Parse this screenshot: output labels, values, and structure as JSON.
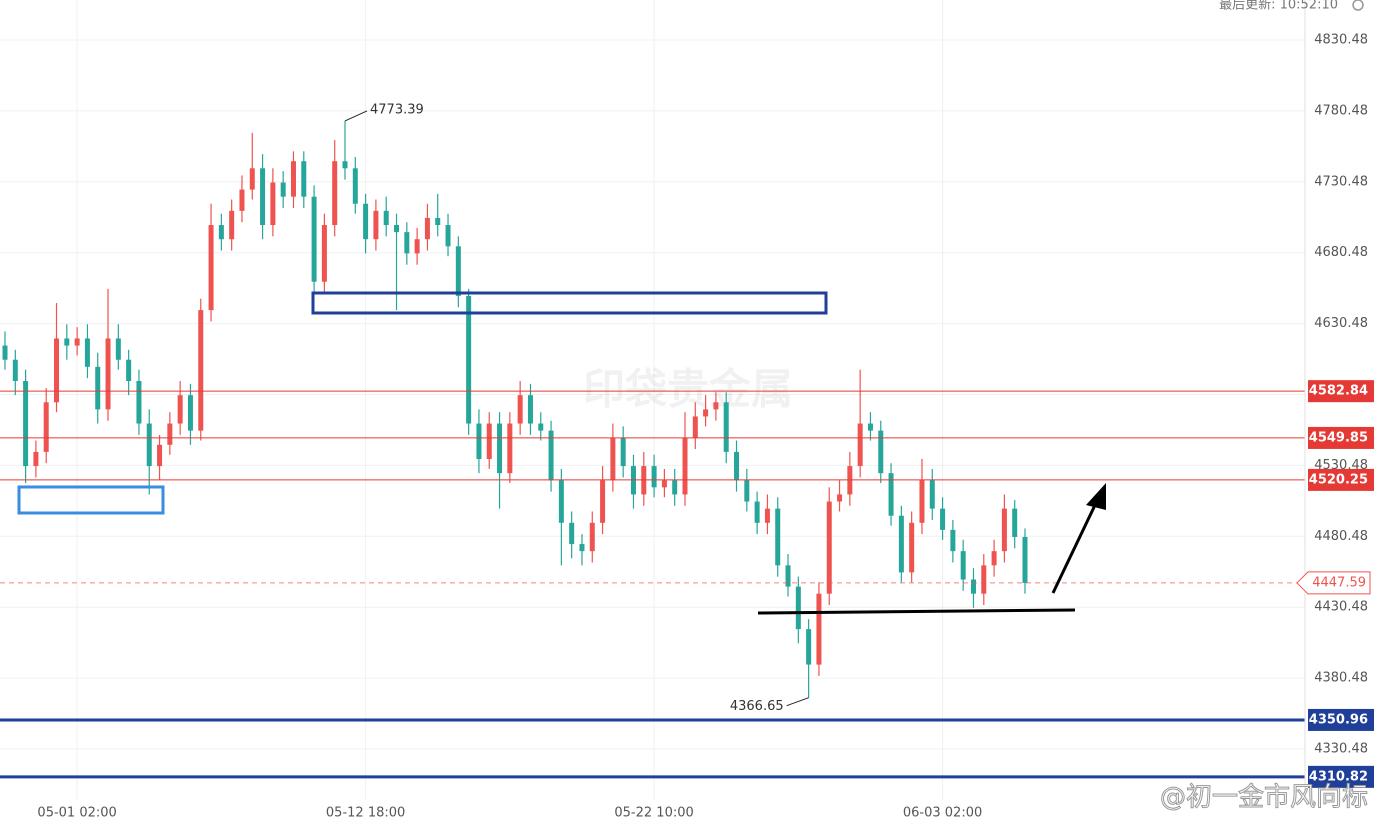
{
  "header": {
    "last_update": "最后更新: 10:52:10"
  },
  "watermarks": {
    "center": "印袋贵金属",
    "corner": "@初一金市风向标"
  },
  "chart_data": {
    "type": "candlestick",
    "up_color": "#ef5350",
    "down_color": "#26a69a",
    "categories": [
      null,
      null,
      null,
      null,
      null,
      null,
      null,
      "05-01 02:00",
      null,
      null,
      null,
      null,
      null,
      null,
      null,
      null,
      null,
      null,
      null,
      null,
      null,
      null,
      null,
      null,
      null,
      null,
      null,
      null,
      null,
      null,
      null,
      null,
      null,
      null,
      null,
      "05-12 18:00",
      null,
      null,
      null,
      null,
      null,
      null,
      null,
      null,
      null,
      null,
      null,
      null,
      null,
      null,
      null,
      null,
      null,
      null,
      null,
      null,
      null,
      null,
      null,
      null,
      null,
      null,
      null,
      "05-22 10:00",
      null,
      null,
      null,
      null,
      null,
      null,
      null,
      null,
      null,
      null,
      null,
      null,
      null,
      null,
      null,
      null,
      null,
      null,
      null,
      null,
      null,
      null,
      null,
      null,
      null,
      null,
      null,
      "06-03 02:00",
      null,
      null,
      null,
      null,
      null,
      null,
      null,
      null
    ],
    "open": [
      4615,
      4605,
      4590,
      4530,
      4540,
      4575,
      4620,
      4615,
      4620,
      4600,
      4570,
      4620,
      4605,
      4590,
      4560,
      4530,
      4545,
      4560,
      4580,
      4555,
      4640,
      4700,
      4690,
      4710,
      4725,
      4740,
      4700,
      4730,
      4720,
      4745,
      4720,
      4660,
      4700,
      4745,
      4740,
      4715,
      4690,
      4710,
      4700,
      4695,
      4680,
      4690,
      4705,
      4700,
      4685,
      4650,
      4560,
      4535,
      4560,
      4525,
      4560,
      4580,
      4560,
      4555,
      4520,
      4490,
      4475,
      4470,
      4490,
      4520,
      4550,
      4530,
      4510,
      4530,
      4515,
      4520,
      4510,
      4550,
      4565,
      4570,
      4575,
      4540,
      4520,
      4505,
      4490,
      4500,
      4460,
      4445,
      4415,
      4390,
      4440,
      4505,
      4510,
      4530,
      4560,
      4555,
      4525,
      4495,
      4455,
      4490,
      4520,
      4500,
      4485,
      4470,
      4450,
      4440,
      4460,
      4470,
      4500,
      4480
    ],
    "high": [
      4625,
      4612,
      4598,
      4548,
      4585,
      4645,
      4630,
      4628,
      4630,
      4610,
      4655,
      4630,
      4612,
      4598,
      4570,
      4552,
      4568,
      4590,
      4588,
      4648,
      4715,
      4708,
      4718,
      4735,
      4765,
      4750,
      4740,
      4738,
      4752,
      4752,
      4728,
      4708,
      4760,
      4773.39,
      4748,
      4722,
      4718,
      4720,
      4708,
      4702,
      4698,
      4715,
      4722,
      4708,
      4692,
      4655,
      4570,
      4568,
      4568,
      4568,
      4590,
      4588,
      4568,
      4562,
      4528,
      4498,
      4482,
      4498,
      4530,
      4560,
      4558,
      4538,
      4540,
      4538,
      4528,
      4528,
      4568,
      4575,
      4580,
      4582,
      4582,
      4548,
      4528,
      4512,
      4510,
      4508,
      4468,
      4452,
      4422,
      4448,
      4515,
      4520,
      4540,
      4598,
      4568,
      4562,
      4532,
      4502,
      4498,
      4535,
      4528,
      4508,
      4492,
      4478,
      4458,
      4468,
      4478,
      4510,
      4506,
      4486
    ],
    "low": [
      4598,
      4580,
      4518,
      4522,
      4532,
      4568,
      4605,
      4608,
      4592,
      4560,
      4562,
      4598,
      4580,
      4552,
      4510,
      4520,
      4538,
      4552,
      4545,
      4548,
      4632,
      4682,
      4682,
      4702,
      4718,
      4690,
      4692,
      4712,
      4712,
      4712,
      4652,
      4652,
      4692,
      4732,
      4708,
      4680,
      4682,
      4692,
      4640,
      4672,
      4672,
      4682,
      4692,
      4678,
      4642,
      4552,
      4525,
      4528,
      4500,
      4518,
      4552,
      4552,
      4548,
      4512,
      4460,
      4465,
      4460,
      4462,
      4482,
      4512,
      4522,
      4500,
      4502,
      4508,
      4508,
      4502,
      4502,
      4542,
      4558,
      4562,
      4532,
      4512,
      4498,
      4482,
      4482,
      4452,
      4438,
      4405,
      4366.65,
      4382,
      4432,
      4498,
      4502,
      4522,
      4548,
      4518,
      4488,
      4448,
      4448,
      4482,
      4492,
      4478,
      4462,
      4442,
      4430,
      4432,
      4452,
      4462,
      4472,
      4440
    ],
    "close": [
      4605,
      4590,
      4530,
      4540,
      4575,
      4620,
      4615,
      4620,
      4600,
      4570,
      4620,
      4605,
      4590,
      4560,
      4530,
      4545,
      4560,
      4580,
      4555,
      4640,
      4700,
      4690,
      4710,
      4725,
      4740,
      4700,
      4730,
      4720,
      4745,
      4720,
      4660,
      4700,
      4745,
      4740,
      4715,
      4690,
      4710,
      4700,
      4695,
      4680,
      4690,
      4705,
      4700,
      4685,
      4650,
      4560,
      4535,
      4560,
      4525,
      4560,
      4580,
      4560,
      4555,
      4520,
      4490,
      4475,
      4470,
      4490,
      4520,
      4550,
      4530,
      4510,
      4530,
      4515,
      4520,
      4510,
      4550,
      4565,
      4570,
      4575,
      4540,
      4520,
      4505,
      4490,
      4500,
      4460,
      4445,
      4415,
      4390,
      4440,
      4505,
      4510,
      4530,
      4560,
      4555,
      4525,
      4495,
      4455,
      4490,
      4520,
      4500,
      4485,
      4470,
      4450,
      4440,
      4460,
      4470,
      4500,
      4480,
      4447.59
    ],
    "ylim": [
      4294.5,
      4858.7
    ],
    "yticks": [
      4330.48,
      4380.48,
      4430.48,
      4480.48,
      4530.48,
      4580.48,
      4630.48,
      4680.48,
      4730.48,
      4780.48,
      4830.48
    ],
    "grid": true,
    "levels": [
      {
        "value": 4582.84,
        "color": "#e53935"
      },
      {
        "value": 4549.85,
        "color": "#e53935"
      },
      {
        "value": 4520.25,
        "color": "#e53935"
      },
      {
        "value": 4350.96,
        "color": "#1f3f99"
      },
      {
        "value": 4310.82,
        "color": "#1f3f99"
      }
    ],
    "last_price": 4447.59,
    "last_price_color": "#ef5350",
    "high_marker": 33,
    "low_marker": 78
  }
}
